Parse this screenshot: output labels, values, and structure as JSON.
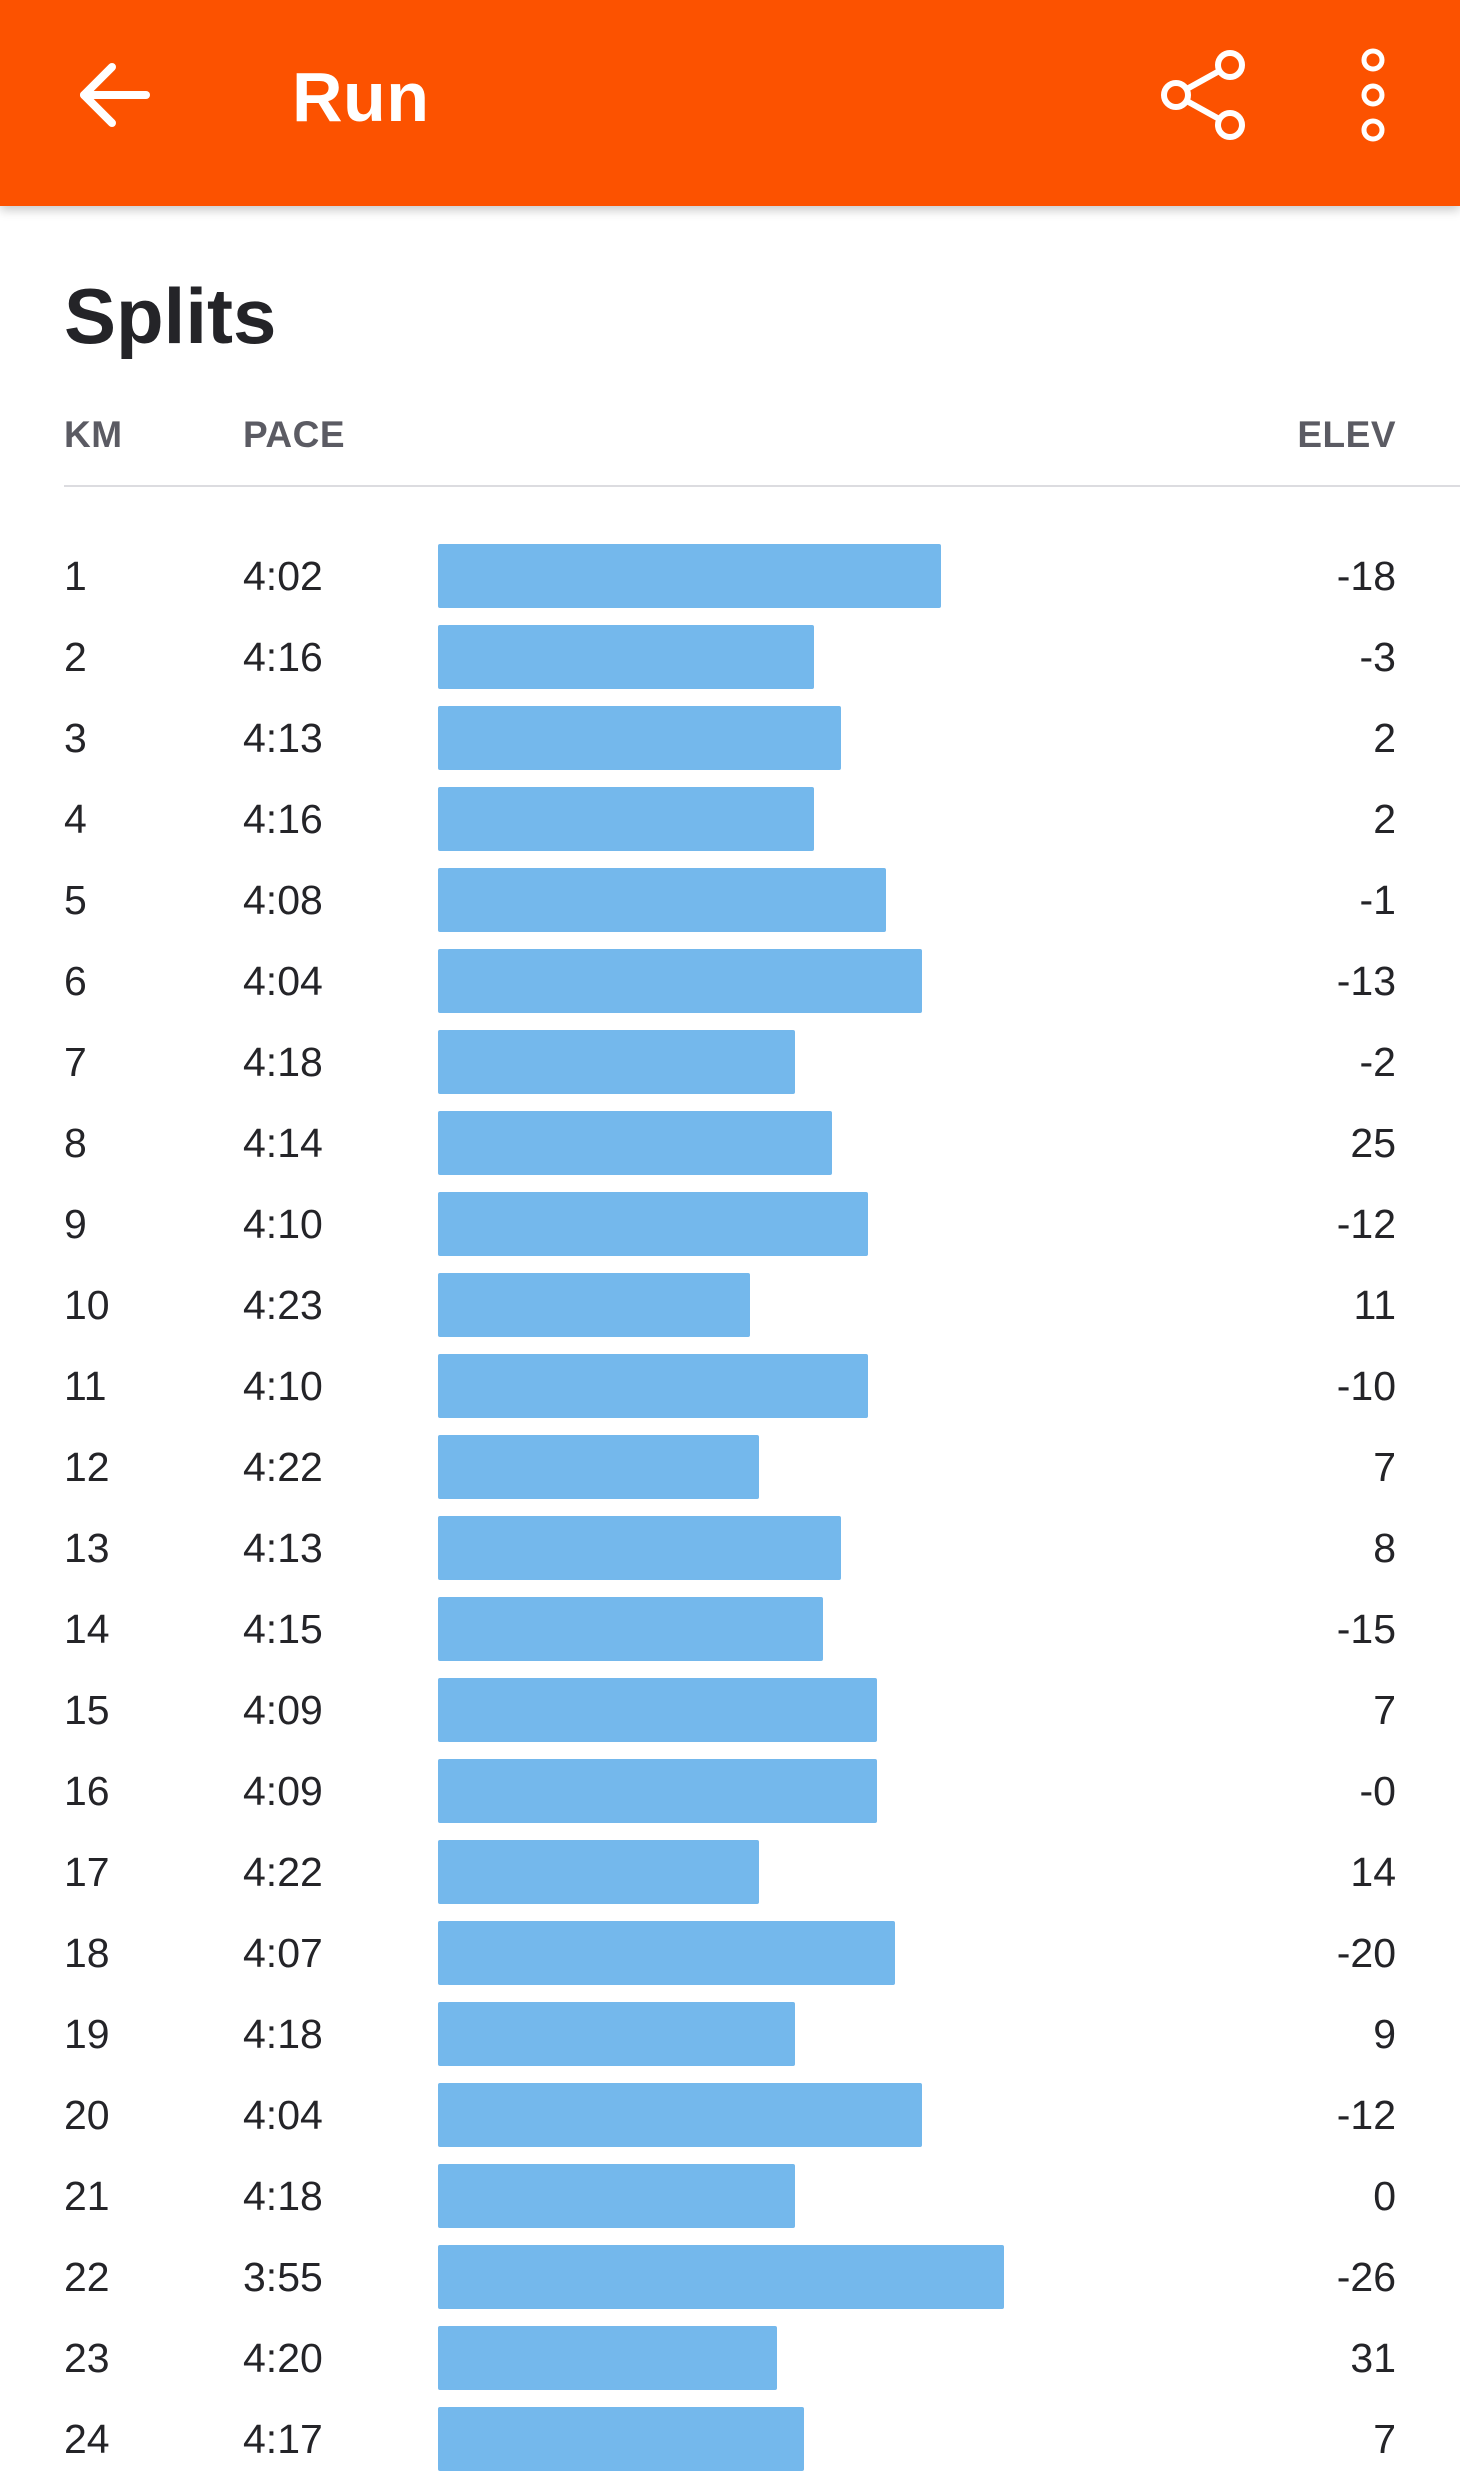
{
  "appbar": {
    "title": "Run",
    "background_color": "#fc5200",
    "back_icon": "arrow-left-icon",
    "share_icon": "share-icon",
    "more_icon": "more-vertical-icon"
  },
  "splits": {
    "title": "Splits",
    "columns": {
      "km": "KM",
      "pace": "PACE",
      "elev": "ELEV"
    },
    "bar_color": "#74b8ec",
    "rows": [
      {
        "km": "1",
        "pace": "4:02",
        "elev": "-18"
      },
      {
        "km": "2",
        "pace": "4:16",
        "elev": "-3"
      },
      {
        "km": "3",
        "pace": "4:13",
        "elev": "2"
      },
      {
        "km": "4",
        "pace": "4:16",
        "elev": "2"
      },
      {
        "km": "5",
        "pace": "4:08",
        "elev": "-1"
      },
      {
        "km": "6",
        "pace": "4:04",
        "elev": "-13"
      },
      {
        "km": "7",
        "pace": "4:18",
        "elev": "-2"
      },
      {
        "km": "8",
        "pace": "4:14",
        "elev": "25"
      },
      {
        "km": "9",
        "pace": "4:10",
        "elev": "-12"
      },
      {
        "km": "10",
        "pace": "4:23",
        "elev": "11"
      },
      {
        "km": "11",
        "pace": "4:10",
        "elev": "-10"
      },
      {
        "km": "12",
        "pace": "4:22",
        "elev": "7"
      },
      {
        "km": "13",
        "pace": "4:13",
        "elev": "8"
      },
      {
        "km": "14",
        "pace": "4:15",
        "elev": "-15"
      },
      {
        "km": "15",
        "pace": "4:09",
        "elev": "7"
      },
      {
        "km": "16",
        "pace": "4:09",
        "elev": "-0"
      },
      {
        "km": "17",
        "pace": "4:22",
        "elev": "14"
      },
      {
        "km": "18",
        "pace": "4:07",
        "elev": "-20"
      },
      {
        "km": "19",
        "pace": "4:18",
        "elev": "9"
      },
      {
        "km": "20",
        "pace": "4:04",
        "elev": "-12"
      },
      {
        "km": "21",
        "pace": "4:18",
        "elev": "0"
      },
      {
        "km": "22",
        "pace": "3:55",
        "elev": "-26"
      },
      {
        "km": "23",
        "pace": "4:20",
        "elev": "31"
      },
      {
        "km": "24",
        "pace": "4:17",
        "elev": "7"
      }
    ]
  }
}
